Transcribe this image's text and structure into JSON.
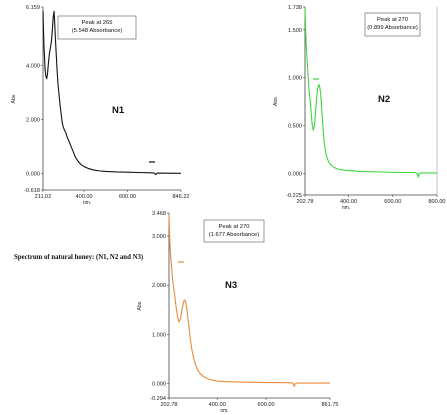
{
  "caption": "Spectrum  of natural  honey: (N1, N2 and N3)",
  "chart_data": [
    {
      "type": "line",
      "label": "N1",
      "color": "#111111",
      "xlabel": "nm.",
      "ylabel": "Abs.",
      "xlim": [
        211.02,
        846.22
      ],
      "ylim": [
        -0.618,
        6.159
      ],
      "x_ticks": [
        "211.02",
        "400.00",
        "600.00",
        "846.22"
      ],
      "y_ticks": [
        "6.159",
        "4.000",
        "2.000",
        "0.000",
        "-0.618"
      ],
      "peak_text": [
        "Peak at 265",
        "(5.548 Absorbance)"
      ],
      "x": [
        211.02,
        213,
        216,
        218,
        220,
        224,
        228,
        232,
        235,
        240,
        246,
        250,
        254,
        258,
        262,
        265,
        268,
        272,
        276,
        280,
        285,
        290,
        296,
        300,
        305,
        310,
        316,
        322,
        330,
        340,
        350,
        360,
        372,
        385,
        400,
        420,
        440,
        470,
        500,
        550,
        600,
        650,
        700,
        720,
        725,
        730,
        735,
        740,
        780,
        846.22
      ],
      "y": [
        6.0,
        5.4,
        4.6,
        4.3,
        3.9,
        3.6,
        3.5,
        3.7,
        4.0,
        4.4,
        4.7,
        4.9,
        5.3,
        5.8,
        6.0,
        5.548,
        5.0,
        4.4,
        3.8,
        3.3,
        2.9,
        2.5,
        2.1,
        1.85,
        1.7,
        1.6,
        1.5,
        1.35,
        1.2,
        1.0,
        0.8,
        0.6,
        0.45,
        0.33,
        0.25,
        0.18,
        0.13,
        0.09,
        0.07,
        0.05,
        0.04,
        0.03,
        0.02,
        0.015,
        0.0,
        -0.05,
        0.0,
        0.01,
        0.005,
        0.0
      ]
    },
    {
      "type": "line",
      "label": "N2",
      "color": "#3fd53f",
      "xlabel": "nm.",
      "ylabel": "Abs.",
      "xlim": [
        202.78,
        800.0
      ],
      "ylim": [
        -0.225,
        1.738
      ],
      "x_ticks": [
        "202.78",
        "400.00",
        "600.00",
        "800.00"
      ],
      "y_ticks": [
        "1.738",
        "1.500",
        "1.000",
        "0.500",
        "0.000",
        "-0.225"
      ],
      "peak_text": [
        "Peak at 270",
        "(0.899 Absorbance)"
      ],
      "x": [
        202.78,
        204,
        206,
        208,
        212,
        216,
        220,
        225,
        230,
        235,
        240,
        246,
        250,
        255,
        260,
        265,
        270,
        274,
        278,
        282,
        286,
        290,
        295,
        300,
        310,
        320,
        330,
        345,
        360,
        380,
        400,
        430,
        460,
        500,
        550,
        600,
        650,
        700,
        710,
        715,
        720,
        725,
        730,
        760,
        800
      ],
      "y": [
        1.72,
        1.62,
        1.48,
        1.36,
        1.2,
        1.05,
        0.9,
        0.78,
        0.65,
        0.52,
        0.45,
        0.5,
        0.62,
        0.78,
        0.88,
        0.93,
        0.899,
        0.82,
        0.7,
        0.56,
        0.42,
        0.32,
        0.24,
        0.18,
        0.12,
        0.09,
        0.07,
        0.05,
        0.04,
        0.035,
        0.03,
        0.025,
        0.02,
        0.018,
        0.015,
        0.012,
        0.01,
        0.01,
        0.0,
        -0.04,
        0.0,
        0.005,
        0.005,
        0.005,
        0.005
      ]
    },
    {
      "type": "line",
      "label": "N3",
      "color": "#e88a3c",
      "xlabel": "nm.",
      "ylabel": "Abs.",
      "xlim": [
        202.78,
        861.75
      ],
      "ylim": [
        -0.294,
        3.468
      ],
      "x_ticks": [
        "202.78",
        "400.00",
        "600.00",
        "861.75"
      ],
      "y_ticks": [
        "3.468",
        "3.000",
        "2.000",
        "1.000",
        "0.000",
        "-0.294"
      ],
      "peak_text": [
        "Peak at 270",
        "(1.677 Absorbance)"
      ],
      "x": [
        202.78,
        204,
        206,
        208,
        212,
        216,
        220,
        226,
        232,
        238,
        244,
        250,
        256,
        262,
        266,
        270,
        275,
        280,
        285,
        290,
        296,
        302,
        310,
        320,
        330,
        345,
        360,
        380,
        400,
        430,
        460,
        500,
        550,
        600,
        650,
        700,
        710,
        715,
        720,
        725,
        730,
        760,
        800,
        861.75
      ],
      "y": [
        3.44,
        3.2,
        2.9,
        2.7,
        2.45,
        2.2,
        2.0,
        1.8,
        1.55,
        1.35,
        1.25,
        1.32,
        1.5,
        1.65,
        1.7,
        1.677,
        1.55,
        1.35,
        1.12,
        0.9,
        0.7,
        0.55,
        0.4,
        0.28,
        0.2,
        0.14,
        0.1,
        0.07,
        0.05,
        0.04,
        0.035,
        0.03,
        0.025,
        0.02,
        0.02,
        0.015,
        0.01,
        -0.06,
        0.0,
        0.01,
        0.01,
        0.01,
        0.01,
        0.01
      ]
    }
  ]
}
